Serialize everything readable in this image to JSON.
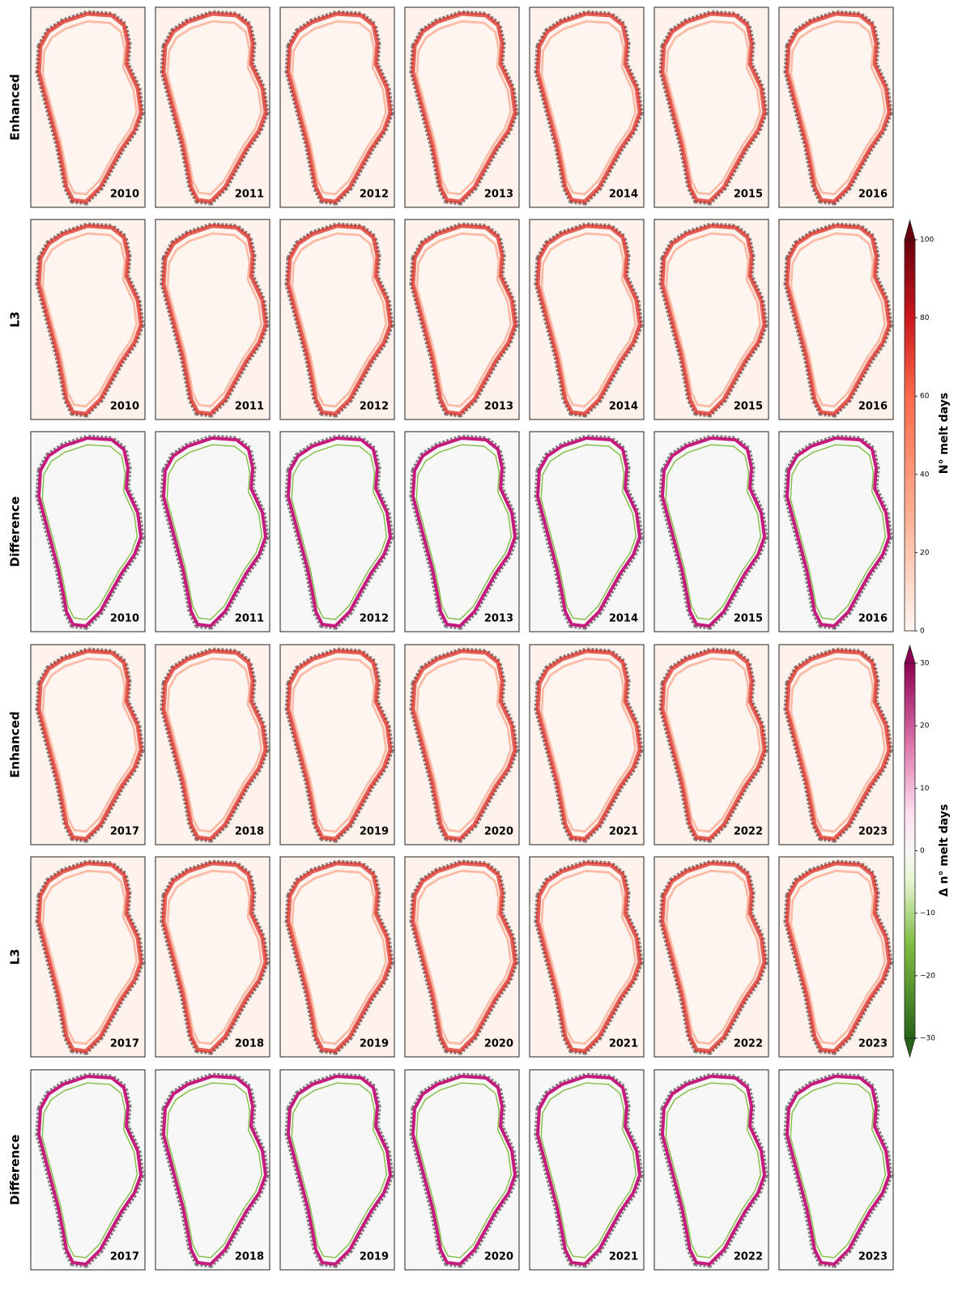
{
  "rows": [
    {
      "label": "Enhanced",
      "years": [
        "2010",
        "2011",
        "2012",
        "2013",
        "2014",
        "2015",
        "2016"
      ]
    },
    {
      "label": "L3",
      "years": [
        "2010",
        "2011",
        "2012",
        "2013",
        "2014",
        "2015",
        "2016"
      ]
    },
    {
      "label": "Difference",
      "years": [
        "2010",
        "2011",
        "2012",
        "2013",
        "2014",
        "2015",
        "2016"
      ]
    },
    {
      "label": "Enhanced",
      "years": [
        "2017",
        "2018",
        "2019",
        "2020",
        "2021",
        "2022",
        "2023"
      ]
    },
    {
      "label": "L3",
      "years": [
        "2017",
        "2018",
        "2019",
        "2020",
        "2021",
        "2022",
        "2023"
      ]
    },
    {
      "label": "Difference",
      "years": [
        "2017",
        "2018",
        "2019",
        "2020",
        "2021",
        "2022",
        "2023"
      ]
    }
  ],
  "colorbars": [
    {
      "label": "N° melt days",
      "lim": [
        0,
        100
      ],
      "ticks": [
        0,
        20,
        40,
        60,
        80,
        100
      ]
    },
    {
      "label": "Δ n° melt days",
      "lim": [
        -30,
        30
      ],
      "ticks": [
        {
          "value": -30,
          "label": "−30"
        },
        {
          "value": -20,
          "label": "−20"
        },
        {
          "value": -10,
          "label": "−10"
        },
        0,
        10,
        20,
        30
      ]
    }
  ]
}
